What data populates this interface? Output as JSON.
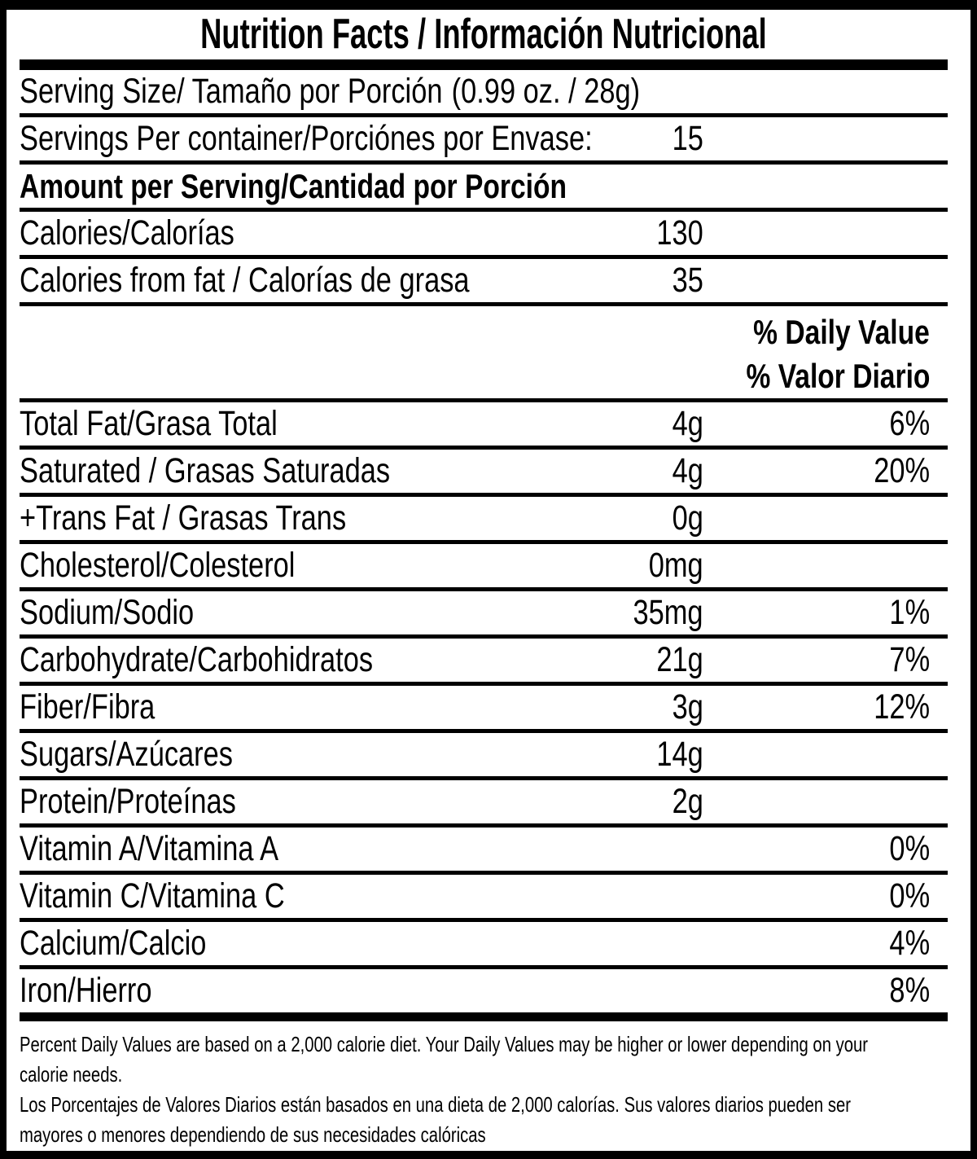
{
  "colors": {
    "text": "#000000",
    "background": "#ffffff"
  },
  "label": {
    "title": "Nutrition Facts / Información Nutricional",
    "serving": {
      "size_label": "Serving Size/ Tamaño por Porción",
      "size_value": "(0.99 oz. / 28g)",
      "per_container_label": "Servings Per container/Porciónes por Envase:",
      "per_container_value": "15"
    },
    "amount_header": "Amount per Serving/Cantidad por Porción",
    "calories": {
      "label": "Calories/Calorías",
      "value": "130"
    },
    "calories_from_fat": {
      "label": "Calories from fat / Calorías de grasa",
      "value": "35"
    },
    "dv_header": {
      "line1": "% Daily Value",
      "line2": "% Valor Diario"
    },
    "nutrients": [
      {
        "name": "Total Fat/Grasa Total",
        "amount": "4g",
        "dv": "6%"
      },
      {
        "name": "Saturated / Grasas Saturadas",
        "amount": "4g",
        "dv": "20%"
      },
      {
        "name": "+Trans Fat / Grasas Trans",
        "amount": "0g",
        "dv": ""
      },
      {
        "name": "Cholesterol/Colesterol",
        "amount": "0mg",
        "dv": ""
      },
      {
        "name": "Sodium/Sodio",
        "amount": "35mg",
        "dv": "1%"
      },
      {
        "name": "Carbohydrate/Carbohidratos",
        "amount": "21g",
        "dv": "7%"
      },
      {
        "name": "Fiber/Fibra",
        "amount": "3g",
        "dv": "12%"
      },
      {
        "name": "Sugars/Azúcares",
        "amount": "14g",
        "dv": ""
      },
      {
        "name": "Protein/Proteínas",
        "amount": "2g",
        "dv": ""
      },
      {
        "name": "Vitamin A/Vitamina A",
        "amount": "",
        "dv": "0%"
      },
      {
        "name": "Vitamin C/Vitamina C",
        "amount": "",
        "dv": "0%"
      },
      {
        "name": "Calcium/Calcio",
        "amount": "",
        "dv": "4%"
      },
      {
        "name": "Iron/Hierro",
        "amount": "",
        "dv": "8%"
      }
    ],
    "footnote_lines": [
      "Percent Daily Values are based on a 2,000 calorie diet. Your Daily Values may be higher or lower depending on your",
      "calorie needs.",
      "Los Porcentajes de Valores Diarios están basados en una dieta de 2,000 calorías. Sus valores diarios pueden ser",
      "mayores o menores dependiendo de sus necesidades calóricas"
    ]
  }
}
